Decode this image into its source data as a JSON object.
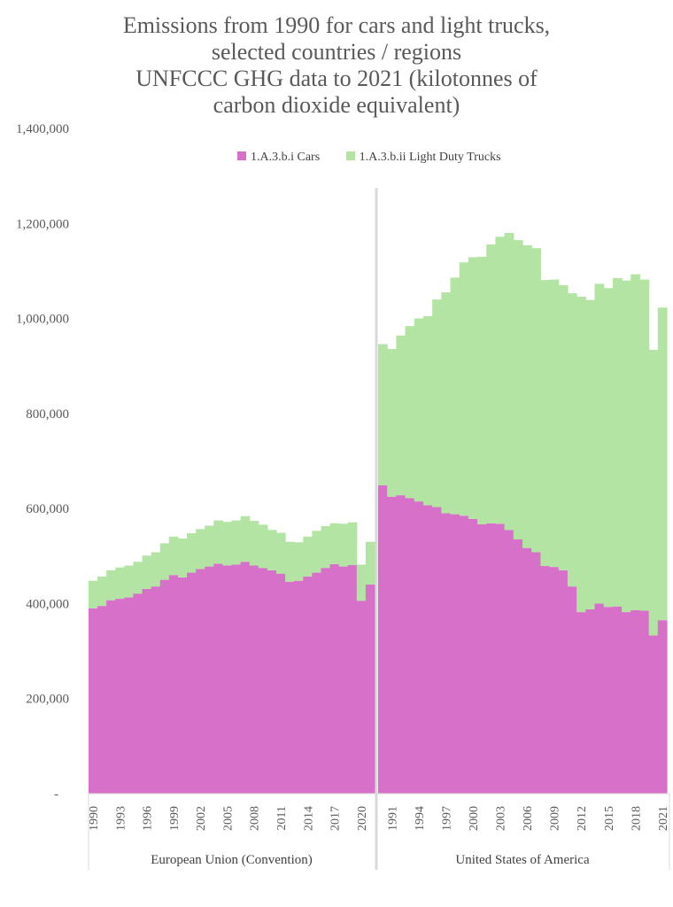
{
  "colors": {
    "cars": "#d670c8",
    "trucks": "#b4e4a4",
    "axis_text": "#595959",
    "title": "#595959",
    "divider": "#d9d9d9"
  },
  "chart_data": {
    "type": "area",
    "stacked": true,
    "title_lines": [
      "Emissions from 1990 for cars and light trucks,",
      "selected countries / regions",
      "UNFCCC GHG data to 2021 (kilotonnes of",
      "carbon dioxide equivalent)"
    ],
    "ylim": [
      0,
      1400000
    ],
    "yticks": [
      {
        "value": 0,
        "label": "-"
      },
      {
        "value": 200000,
        "label": "200,000"
      },
      {
        "value": 400000,
        "label": "400,000"
      },
      {
        "value": 600000,
        "label": "600,000"
      },
      {
        "value": 800000,
        "label": "800,000"
      },
      {
        "value": 1000000,
        "label": "1,000,000"
      },
      {
        "value": 1200000,
        "label": "1,200,000"
      },
      {
        "value": 1400000,
        "label": "1,400,000"
      }
    ],
    "series": [
      {
        "key": "cars",
        "name": "1.A.3.b.i  Cars"
      },
      {
        "key": "trucks",
        "name": "1.A.3.b.ii  Light Duty Trucks"
      }
    ],
    "groups": [
      {
        "name": "European Union (Convention)",
        "years": [
          1990,
          1991,
          1992,
          1993,
          1994,
          1995,
          1996,
          1997,
          1998,
          1999,
          2000,
          2001,
          2002,
          2003,
          2004,
          2005,
          2006,
          2007,
          2008,
          2009,
          2010,
          2011,
          2012,
          2013,
          2014,
          2015,
          2016,
          2017,
          2018,
          2019,
          2020,
          2021
        ],
        "tick_labels": [
          "1990",
          "1993",
          "1996",
          "1999",
          "2002",
          "2005",
          "2008",
          "2011",
          "2014",
          "2017",
          "2020"
        ],
        "cars": [
          390000,
          395000,
          407000,
          410000,
          413000,
          421000,
          431000,
          436000,
          450000,
          460000,
          455000,
          465000,
          473000,
          478000,
          484000,
          480000,
          482000,
          488000,
          480000,
          475000,
          470000,
          463000,
          446000,
          448000,
          457000,
          465000,
          475000,
          483000,
          478000,
          481000,
          406000,
          440000
        ],
        "trucks": [
          58000,
          62000,
          63000,
          66000,
          67000,
          67000,
          70000,
          72000,
          77000,
          81000,
          82000,
          83000,
          84000,
          86000,
          91000,
          92000,
          93000,
          96000,
          94000,
          91000,
          85000,
          86000,
          84000,
          81000,
          84000,
          88000,
          88000,
          86000,
          90000,
          90000,
          76000,
          90000
        ]
      },
      {
        "name": "United States of America",
        "years": [
          1990,
          1991,
          1992,
          1993,
          1994,
          1995,
          1996,
          1997,
          1998,
          1999,
          2000,
          2001,
          2002,
          2003,
          2004,
          2005,
          2006,
          2007,
          2008,
          2009,
          2010,
          2011,
          2012,
          2013,
          2014,
          2015,
          2016,
          2017,
          2018,
          2019,
          2020,
          2021
        ],
        "tick_labels": [
          "1991",
          "1994",
          "1997",
          "2000",
          "2003",
          "2006",
          "2009",
          "2012",
          "2015",
          "2018",
          "2021"
        ],
        "cars": [
          649000,
          625000,
          628000,
          622000,
          615000,
          607000,
          603000,
          590000,
          588000,
          585000,
          578000,
          567000,
          569000,
          568000,
          555000,
          535000,
          517000,
          508000,
          479000,
          477000,
          470000,
          436000,
          382000,
          388000,
          400000,
          393000,
          394000,
          382000,
          386000,
          385000,
          333000,
          365000
        ],
        "trucks": [
          297000,
          311000,
          336000,
          362000,
          385000,
          398000,
          437000,
          465000,
          498000,
          533000,
          551000,
          563000,
          587000,
          604000,
          625000,
          630000,
          637000,
          640000,
          602000,
          605000,
          600000,
          617000,
          664000,
          651000,
          673000,
          671000,
          691000,
          698000,
          707000,
          697000,
          601000,
          658000
        ]
      }
    ]
  }
}
